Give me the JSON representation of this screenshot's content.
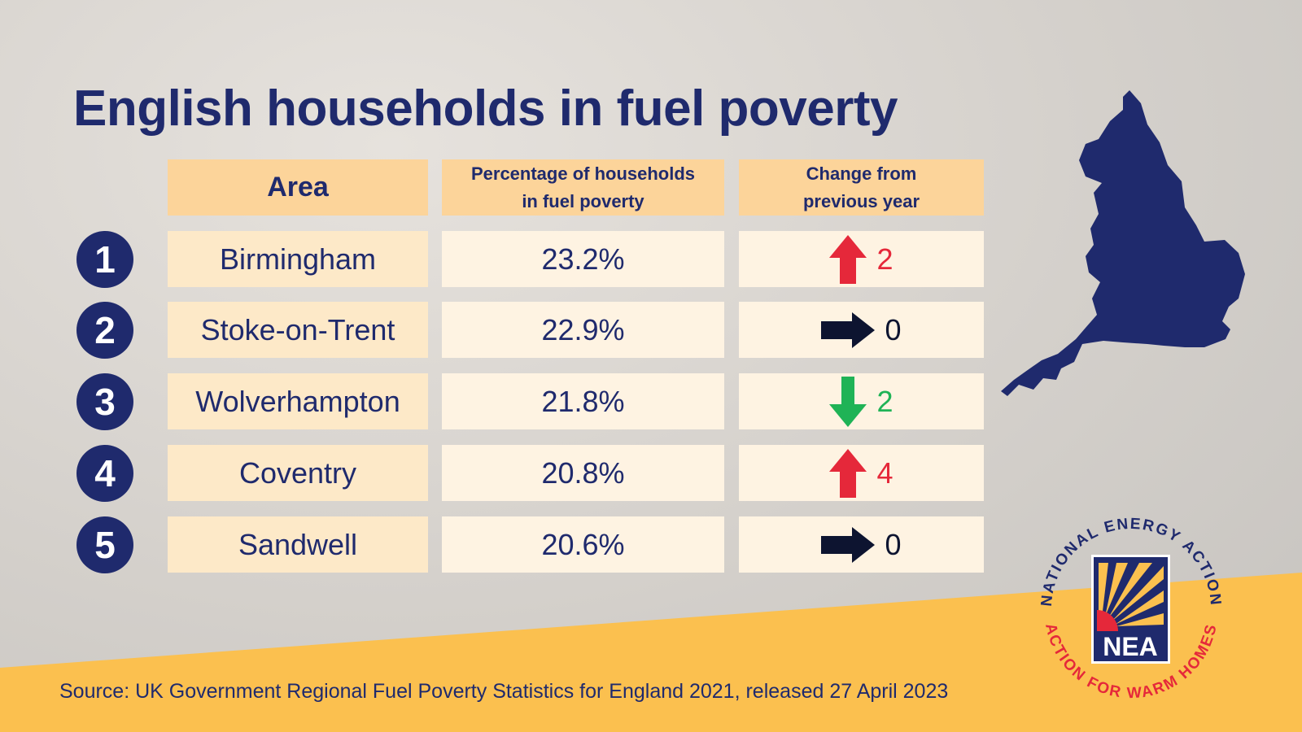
{
  "title": "English households in fuel poverty",
  "table": {
    "headers": {
      "area": "Area",
      "percentage_line1": "Percentage of households",
      "percentage_line2": "in  fuel poverty",
      "change_line1": "Change from",
      "change_line2": "previous year"
    },
    "rows": [
      {
        "rank": "1",
        "area": "Birmingham",
        "percentage": "23.2%",
        "change": "2",
        "direction": "up",
        "color": "#e5283a"
      },
      {
        "rank": "2",
        "area": "Stoke-on-Trent",
        "percentage": "22.9%",
        "change": "0",
        "direction": "same",
        "color": "#0d1430"
      },
      {
        "rank": "3",
        "area": "Wolverhampton",
        "percentage": "21.8%",
        "change": "2",
        "direction": "down",
        "color": "#1fb356"
      },
      {
        "rank": "4",
        "area": "Coventry",
        "percentage": "20.8%",
        "change": "4",
        "direction": "up",
        "color": "#e5283a"
      },
      {
        "rank": "5",
        "area": "Sandwell",
        "percentage": "20.6%",
        "change": "0",
        "direction": "same",
        "color": "#0d1430"
      }
    ]
  },
  "source": "Source: UK Government Regional Fuel Poverty Statistics for England 2021, released 27 April 2023",
  "logo": {
    "top_text": "NATIONAL ENERGY ACTION",
    "bottom_text": "ACTION FOR WARM HOMES",
    "initials": "NEA"
  },
  "colors": {
    "navy": "#1f2a6d",
    "header": "#fcd49a",
    "cell": "#fef3e2",
    "band": "#fbc04f",
    "up": "#e5283a",
    "down": "#1fb356"
  },
  "icons": {
    "map": "england-map-icon",
    "up": "arrow-up-icon",
    "down": "arrow-down-icon",
    "same": "arrow-right-icon"
  }
}
